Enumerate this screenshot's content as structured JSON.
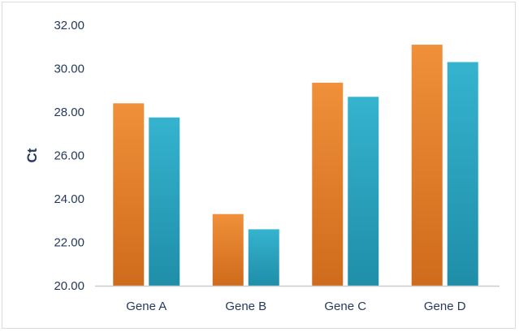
{
  "chart_data": {
    "type": "bar",
    "title": "",
    "xlabel": "",
    "ylabel": "Ct",
    "categories": [
      "Gene A",
      "Gene B",
      "Gene C",
      "Gene D"
    ],
    "series": [
      {
        "color": "#e8822b",
        "values": [
          28.4,
          23.3,
          29.35,
          31.1
        ]
      },
      {
        "color": "#2ea8c4",
        "values": [
          27.75,
          22.6,
          28.7,
          30.3
        ]
      }
    ],
    "ylim": [
      20,
      32
    ],
    "yticks": [
      "20.00",
      "22.00",
      "24.00",
      "26.00",
      "28.00",
      "30.00",
      "32.00"
    ],
    "grid": false,
    "legend": "none"
  }
}
